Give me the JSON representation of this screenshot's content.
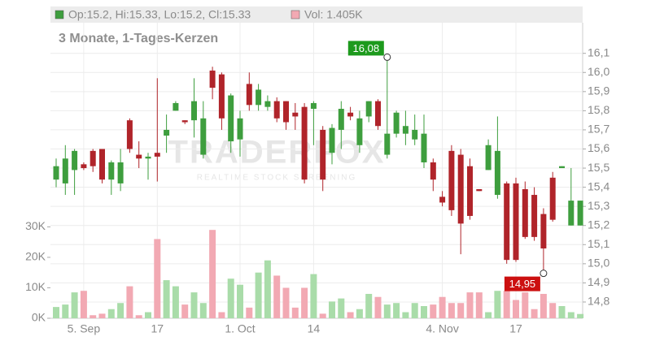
{
  "chart_data": {
    "type": "candlestick",
    "title": "3 Monate, 1-Tages-Kerzen",
    "header": {
      "ohlc": "Op:15.2, Hi:15.33, Lo:15.2, Cl:15.33",
      "volume": "Vol: 1.405K"
    },
    "watermark": {
      "brand": "TRADERFOX",
      "tagline": "REALTIME STOCK SCREENING"
    },
    "categories": [
      null,
      null,
      null,
      "5. Sep",
      null,
      null,
      null,
      null,
      null,
      null,
      null,
      "17",
      null,
      null,
      null,
      null,
      null,
      null,
      null,
      null,
      "1. Oct",
      null,
      null,
      null,
      null,
      null,
      null,
      null,
      "14",
      null,
      null,
      null,
      null,
      null,
      null,
      null,
      null,
      null,
      null,
      null,
      null,
      null,
      "4. Nov",
      null,
      null,
      null,
      null,
      null,
      null,
      null,
      "17",
      null,
      null,
      null,
      null,
      null,
      null,
      null
    ],
    "open": [
      15.44,
      15.42,
      15.49,
      15.52,
      15.59,
      15.6,
      15.44,
      15.42,
      15.75,
      15.57,
      15.55,
      15.58,
      15.67,
      15.8,
      15.75,
      15.75,
      15.57,
      16.01,
      15.99,
      15.64,
      15.65,
      15.94,
      15.83,
      15.82,
      15.85,
      15.85,
      15.79,
      15.82,
      15.81,
      15.7,
      15.58,
      15.7,
      15.79,
      15.62,
      15.77,
      15.85,
      15.57,
      15.68,
      15.68,
      15.65,
      15.53,
      15.53,
      15.35,
      15.59,
      15.57,
      15.51,
      15.39,
      15.49,
      15.36,
      15.42,
      15.42,
      15.39,
      15.36,
      15.26,
      15.45,
      15.5,
      15.2,
      15.2
    ],
    "high": [
      15.55,
      15.62,
      15.6,
      15.53,
      15.6,
      15.6,
      15.54,
      15.6,
      15.76,
      15.64,
      15.58,
      15.97,
      15.78,
      15.85,
      15.75,
      15.97,
      15.85,
      16.03,
      16.0,
      15.89,
      15.8,
      16.0,
      15.94,
      15.88,
      15.87,
      15.85,
      15.84,
      15.84,
      15.85,
      15.72,
      15.73,
      15.85,
      15.82,
      15.8,
      15.85,
      15.86,
      16.08,
      15.8,
      15.8,
      15.78,
      15.78,
      15.55,
      15.38,
      15.62,
      15.6,
      15.55,
      15.39,
      15.65,
      15.77,
      15.43,
      15.45,
      15.43,
      15.4,
      15.29,
      15.48,
      15.51,
      15.5,
      15.33
    ],
    "low": [
      15.4,
      15.36,
      15.36,
      15.49,
      15.48,
      15.42,
      15.36,
      15.38,
      15.58,
      15.5,
      15.44,
      15.43,
      15.58,
      15.8,
      15.73,
      15.66,
      15.55,
      15.86,
      15.7,
      15.58,
      15.56,
      15.8,
      15.8,
      15.8,
      15.74,
      15.7,
      15.7,
      15.42,
      15.62,
      15.38,
      15.52,
      15.6,
      15.75,
      15.58,
      15.74,
      15.7,
      15.55,
      15.66,
      15.62,
      15.62,
      15.5,
      15.38,
      15.3,
      15.25,
      15.05,
      15.23,
      15.38,
      15.49,
      15.34,
      15.0,
      15.01,
      15.13,
      15.12,
      14.95,
      15.22,
      15.5,
      15.2,
      15.2
    ],
    "close": [
      15.51,
      15.55,
      15.59,
      15.5,
      15.51,
      15.44,
      15.53,
      15.53,
      15.6,
      15.55,
      15.56,
      15.56,
      15.7,
      15.84,
      15.74,
      15.85,
      15.76,
      15.92,
      15.76,
      15.88,
      15.76,
      15.83,
      15.91,
      15.85,
      15.76,
      15.74,
      15.77,
      15.44,
      15.84,
      15.44,
      15.71,
      15.81,
      15.77,
      15.76,
      15.85,
      15.72,
      15.68,
      15.79,
      15.72,
      15.7,
      15.68,
      15.44,
      15.32,
      15.28,
      15.21,
      15.25,
      15.38,
      15.62,
      15.59,
      15.02,
      15.02,
      15.14,
      15.14,
      15.08,
      15.23,
      15.51,
      15.33,
      15.33
    ],
    "volume": [
      3700,
      4500,
      8500,
      9000,
      1000,
      1500,
      3000,
      5000,
      10500,
      1000,
      2000,
      26000,
      12500,
      10500,
      4500,
      8500,
      5000,
      29000,
      2000,
      13000,
      11000,
      3500,
      15000,
      19000,
      14000,
      10000,
      3500,
      10000,
      14500,
      1500,
      5500,
      6500,
      2000,
      3000,
      8000,
      7000,
      4500,
      5000,
      2000,
      5000,
      4000,
      4500,
      7000,
      5000,
      5000,
      8500,
      8500,
      2000,
      9000,
      9000,
      6000,
      8500,
      3000,
      8000,
      5000,
      4000,
      2000,
      1405
    ],
    "ylim": [
      14.715,
      16.26
    ],
    "yticks": [
      {
        "value": 14.8,
        "label": "14,8"
      },
      {
        "value": 14.9,
        "label": "14,9"
      },
      {
        "value": 15.0,
        "label": "15,0"
      },
      {
        "value": 15.1,
        "label": "15,1"
      },
      {
        "value": 15.2,
        "label": "15,2"
      },
      {
        "value": 15.3,
        "label": "15,3"
      },
      {
        "value": 15.4,
        "label": "15,4"
      },
      {
        "value": 15.5,
        "label": "15,5"
      },
      {
        "value": 15.6,
        "label": "15,6"
      },
      {
        "value": 15.7,
        "label": "15,7"
      },
      {
        "value": 15.8,
        "label": "15,8"
      },
      {
        "value": 15.9,
        "label": "15,9"
      },
      {
        "value": 16.0,
        "label": "16,0"
      },
      {
        "value": 16.1,
        "label": "16,1"
      }
    ],
    "vlim": [
      0,
      97000
    ],
    "vticks": [
      {
        "value": 0,
        "label": "0K"
      },
      {
        "value": 10000,
        "label": "10K"
      },
      {
        "value": 20000,
        "label": "20K"
      },
      {
        "value": 30000,
        "label": "30K"
      }
    ],
    "up_color": "#3e9e3e",
    "down_color": "#b0242a",
    "volume_up_color": "#a9dca9",
    "volume_down_color": "#f2a9b3",
    "grid": true,
    "annotations": [
      {
        "label": "16,08",
        "value": 16.08,
        "index": 36,
        "color": "#1d9a1d"
      },
      {
        "label": "14,95",
        "value": 14.95,
        "index": 53,
        "color": "#cc1010"
      }
    ]
  }
}
